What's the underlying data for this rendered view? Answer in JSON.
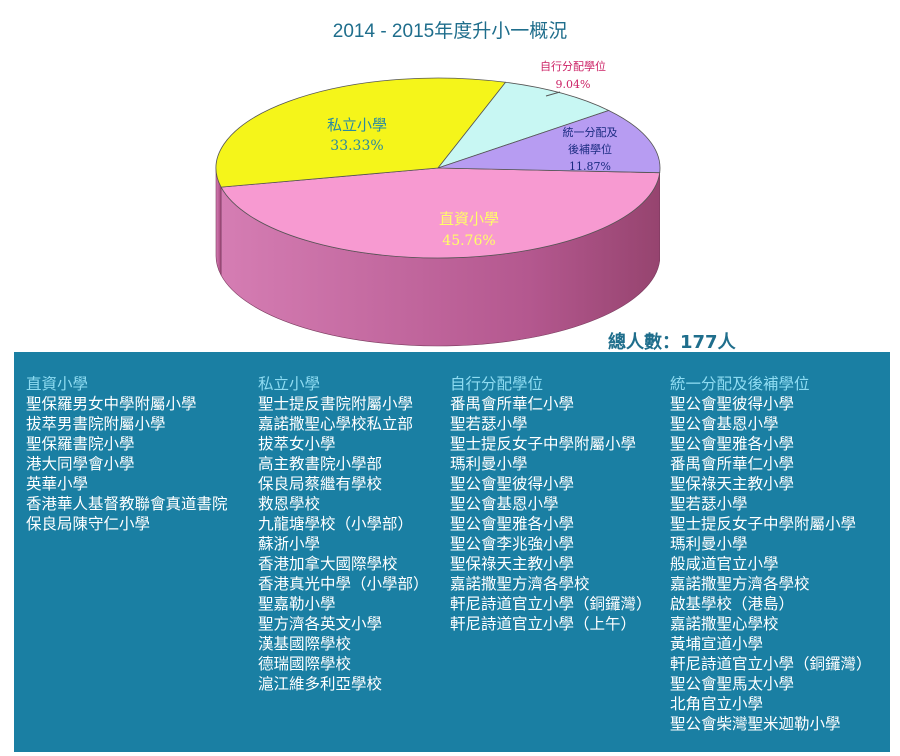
{
  "title": "2014 - 2015年度升小一概況",
  "total": "總人數：177人",
  "chart_data": {
    "type": "pie",
    "title": "2014 - 2015年度升小一概況",
    "slices": [
      {
        "label": "直資小學",
        "pct_label": "45.76%",
        "value": 45.76,
        "color": "#f79ad1"
      },
      {
        "label": "私立小學",
        "pct_label": "33.33%",
        "value": 33.33,
        "color": "#f5f51a"
      },
      {
        "label": "自行分配學位",
        "pct_label": "9.04%",
        "value": 9.04,
        "color": "#c8f7f3"
      },
      {
        "label": "統一分配及後補學位",
        "pct_label": "11.87%",
        "value": 11.87,
        "color": "#b79cf2"
      }
    ]
  },
  "pie_labels": {
    "zhizi": {
      "name": "直資小學",
      "pct": "45.76%"
    },
    "sili": {
      "name": "私立小學",
      "pct": "33.33%"
    },
    "zixing": {
      "name": "自行分配學位",
      "pct": "9.04%"
    },
    "tongyi": {
      "name_line1": "統一分配及",
      "name_line2": "後補學位",
      "pct": "11.87%"
    }
  },
  "columns": [
    {
      "heading": "直資小學",
      "schools": [
        "聖保羅男女中學附屬小學",
        "拔萃男書院附屬小學",
        "聖保羅書院小學",
        "港大同學會小學",
        "英華小學",
        "香港華人基督教聯會真道書院",
        "保良局陳守仁小學"
      ]
    },
    {
      "heading": "私立小學",
      "schools": [
        "聖士提反書院附屬小學",
        "嘉諾撒聖心學校私立部",
        "拔萃女小學",
        "高主教書院小學部",
        "保良局蔡繼有學校",
        "救恩學校",
        "九龍塘學校（小學部）",
        "蘇浙小學",
        "香港加拿大國際學校",
        "香港真光中學（小學部）",
        "聖嘉勒小學",
        "聖方濟各英文小學",
        "漢基國際學校",
        "德瑞國際學校",
        "滬江維多利亞學校"
      ]
    },
    {
      "heading": "自行分配學位",
      "schools": [
        "番禺會所華仁小學",
        "聖若瑟小學",
        "聖士提反女子中學附屬小學",
        "瑪利曼小學",
        "聖公會聖彼得小學",
        "聖公會基恩小學",
        "聖公會聖雅各小學",
        "聖公會李兆強小學",
        "聖保祿天主教小學",
        "嘉諾撒聖方濟各學校",
        "軒尼詩道官立小學（銅鑼灣）",
        "軒尼詩道官立小學（上午）"
      ]
    },
    {
      "heading": "統一分配及後補學位",
      "schools": [
        "聖公會聖彼得小學",
        "聖公會基恩小學",
        "聖公會聖雅各小學",
        "番禺會所華仁小學",
        "聖保祿天主教小學",
        "聖若瑟小學",
        "聖士提反女子中學附屬小學",
        "瑪利曼小學",
        "般咸道官立小學",
        "嘉諾撒聖方濟各學校",
        "啟基學校（港島）",
        "嘉諾撒聖心學校",
        "黃埔宣道小學",
        "軒尼詩道官立小學（銅鑼灣）",
        "聖公會聖馬太小學",
        "北角官立小學",
        "聖公會柴灣聖米迦勒小學"
      ]
    }
  ]
}
